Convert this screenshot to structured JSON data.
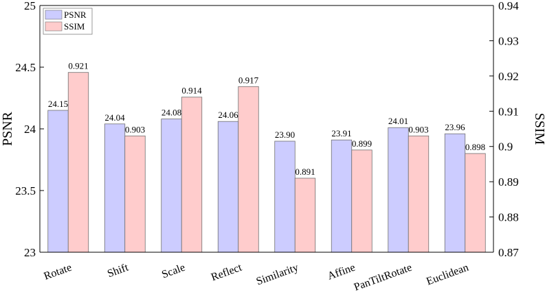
{
  "chart_data": {
    "type": "bar",
    "categories": [
      "Rotate",
      "Shift",
      "Scale",
      "Reflect",
      "Similarity",
      "Affine",
      "PanTiltRotate",
      "Euclidean"
    ],
    "series": [
      {
        "name": "PSNR",
        "axis": "left",
        "color": "#ccccff",
        "values": [
          24.15,
          24.04,
          24.08,
          24.06,
          23.9,
          23.91,
          24.01,
          23.96
        ],
        "labels": [
          "24.15",
          "24.04",
          "24.08",
          "24.06",
          "23.90",
          "23.91",
          "24.01",
          "23.96"
        ]
      },
      {
        "name": "SSIM",
        "axis": "right",
        "color": "#ffcccc",
        "values": [
          0.921,
          0.903,
          0.914,
          0.917,
          0.891,
          0.899,
          0.903,
          0.898
        ],
        "labels": [
          "0.921",
          "0.903",
          "0.914",
          "0.917",
          "0.891",
          "0.899",
          "0.903",
          "0.898"
        ]
      }
    ],
    "ylabel_left": "PSNR",
    "ylabel_right": "SSIM",
    "ylim_left": [
      23,
      25
    ],
    "ylim_right": [
      0.87,
      0.94
    ],
    "yticks_left": [
      "23",
      "23.5",
      "24",
      "24.5",
      "25"
    ],
    "yticks_right": [
      "0.87",
      "0.88",
      "0.89",
      "0.9",
      "0.91",
      "0.92",
      "0.93",
      "0.94"
    ],
    "grid": false,
    "legend_position": "top-left"
  }
}
